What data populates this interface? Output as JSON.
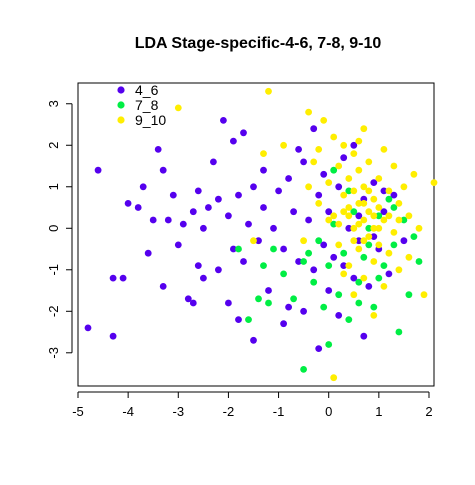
{
  "chart_data": {
    "type": "scatter",
    "title": "LDA Stage-specific-4-6, 7-8, 9-10",
    "xlabel": "",
    "ylabel": "",
    "xlim": [
      -5,
      2.1
    ],
    "ylim": [
      -3.8,
      3.5
    ],
    "x_ticks": [
      -5,
      -4,
      -3,
      -2,
      -1,
      0,
      1,
      2
    ],
    "y_ticks": [
      -3,
      -2,
      -1,
      0,
      1,
      2,
      3
    ],
    "x_tick_labels": [
      "-5",
      "-4",
      "-3",
      "-2",
      "-1",
      "0",
      "1",
      "2"
    ],
    "y_tick_labels": [
      "-3",
      "-2",
      "-1",
      "0",
      "1",
      "2",
      "3"
    ],
    "legend_position": "top-left",
    "series": [
      {
        "name": "4_6",
        "color": "#5500ee",
        "points": [
          [
            -4.8,
            -2.4
          ],
          [
            -4.6,
            1.4
          ],
          [
            -4.3,
            -2.6
          ],
          [
            -4.3,
            -1.2
          ],
          [
            -4.1,
            -1.2
          ],
          [
            -4.0,
            0.6
          ],
          [
            -3.8,
            0.5
          ],
          [
            -3.7,
            1.0
          ],
          [
            -3.6,
            -0.6
          ],
          [
            -3.5,
            0.2
          ],
          [
            -3.4,
            1.9
          ],
          [
            -3.3,
            1.4
          ],
          [
            -3.2,
            0.2
          ],
          [
            -3.1,
            0.8
          ],
          [
            -3.0,
            -0.4
          ],
          [
            -2.9,
            0.1
          ],
          [
            -2.8,
            -1.7
          ],
          [
            -2.7,
            -1.8
          ],
          [
            -2.7,
            0.4
          ],
          [
            -2.6,
            -0.9
          ],
          [
            -2.6,
            0.9
          ],
          [
            -2.5,
            0.0
          ],
          [
            -2.4,
            0.5
          ],
          [
            -2.3,
            1.6
          ],
          [
            -2.2,
            -1.0
          ],
          [
            -2.2,
            0.7
          ],
          [
            -2.1,
            2.6
          ],
          [
            -2.0,
            -1.8
          ],
          [
            -2.0,
            0.3
          ],
          [
            -1.9,
            -0.5
          ],
          [
            -1.9,
            2.1
          ],
          [
            -1.8,
            0.8
          ],
          [
            -1.7,
            -0.8
          ],
          [
            -1.7,
            2.3
          ],
          [
            -1.6,
            0.1
          ],
          [
            -1.5,
            -2.7
          ],
          [
            -1.5,
            1.0
          ],
          [
            -1.4,
            -0.3
          ],
          [
            -1.3,
            0.5
          ],
          [
            -1.3,
            1.4
          ],
          [
            -1.2,
            -1.5
          ],
          [
            -1.1,
            0.0
          ],
          [
            -1.0,
            0.9
          ],
          [
            -0.9,
            -0.5
          ],
          [
            -0.8,
            -1.9
          ],
          [
            -0.8,
            1.2
          ],
          [
            -0.7,
            0.4
          ],
          [
            -0.6,
            -0.8
          ],
          [
            -0.5,
            -2.0
          ],
          [
            -0.5,
            1.6
          ],
          [
            -0.4,
            0.2
          ],
          [
            -0.3,
            -1.0
          ],
          [
            -0.3,
            2.4
          ],
          [
            -0.2,
            -2.9
          ],
          [
            -0.2,
            0.8
          ],
          [
            -0.1,
            -0.4
          ],
          [
            -0.1,
            1.3
          ],
          [
            0.0,
            -1.5
          ],
          [
            0.0,
            0.4
          ],
          [
            0.1,
            -0.7
          ],
          [
            0.2,
            1.0
          ],
          [
            0.2,
            -2.1
          ],
          [
            0.3,
            1.7
          ],
          [
            0.4,
            0.0
          ],
          [
            0.5,
            -1.2
          ],
          [
            0.5,
            2.0
          ],
          [
            0.6,
            -0.3
          ],
          [
            0.7,
            0.7
          ],
          [
            0.8,
            -1.4
          ],
          [
            0.9,
            1.1
          ],
          [
            1.0,
            -0.5
          ],
          [
            1.1,
            0.4
          ],
          [
            1.2,
            -1.1
          ],
          [
            1.3,
            0.8
          ],
          [
            1.5,
            -0.3
          ],
          [
            0.7,
            -2.6
          ],
          [
            -0.9,
            -2.3
          ],
          [
            -1.8,
            -2.2
          ],
          [
            -3.3,
            -1.4
          ],
          [
            -2.5,
            -1.2
          ],
          [
            -0.6,
            1.9
          ],
          [
            0.3,
            -0.9
          ],
          [
            0.6,
            0.3
          ],
          [
            0.9,
            -0.2
          ],
          [
            1.1,
            0.9
          ]
        ]
      },
      {
        "name": "7_8",
        "color": "#00ee44",
        "points": [
          [
            -1.8,
            -0.5
          ],
          [
            -1.6,
            -2.2
          ],
          [
            -1.4,
            -1.7
          ],
          [
            -1.3,
            -0.9
          ],
          [
            -1.2,
            -1.8
          ],
          [
            -1.1,
            -0.5
          ],
          [
            -0.9,
            -1.1
          ],
          [
            -0.7,
            -1.7
          ],
          [
            -0.5,
            -3.4
          ],
          [
            -0.5,
            -0.8
          ],
          [
            -0.3,
            -1.3
          ],
          [
            -0.2,
            -0.3
          ],
          [
            -0.1,
            -1.9
          ],
          [
            0.0,
            -2.8
          ],
          [
            0.0,
            -0.9
          ],
          [
            0.1,
            0.1
          ],
          [
            0.2,
            -1.6
          ],
          [
            0.3,
            -0.6
          ],
          [
            0.4,
            -2.2
          ],
          [
            0.5,
            0.4
          ],
          [
            0.6,
            -1.3
          ],
          [
            0.7,
            -0.7
          ],
          [
            0.8,
            0.0
          ],
          [
            0.9,
            -1.9
          ],
          [
            1.0,
            0.3
          ],
          [
            1.1,
            -0.9
          ],
          [
            1.2,
            0.7
          ],
          [
            1.3,
            -0.4
          ],
          [
            1.4,
            -2.5
          ],
          [
            1.5,
            0.2
          ],
          [
            1.6,
            -1.6
          ],
          [
            1.7,
            -0.2
          ],
          [
            1.8,
            -0.8
          ],
          [
            0.4,
            0.9
          ],
          [
            0.1,
            1.4
          ],
          [
            -0.4,
            -0.6
          ],
          [
            0.6,
            -1.8
          ],
          [
            1.0,
            -1.2
          ],
          [
            1.3,
            0.5
          ],
          [
            0.8,
            -0.4
          ]
        ]
      },
      {
        "name": "9_10",
        "color": "#ffee00",
        "points": [
          [
            -3.0,
            2.9
          ],
          [
            -1.2,
            3.3
          ],
          [
            -1.3,
            1.8
          ],
          [
            -1.5,
            -0.3
          ],
          [
            -0.9,
            2.0
          ],
          [
            -0.5,
            -0.3
          ],
          [
            -0.4,
            2.8
          ],
          [
            -0.3,
            1.6
          ],
          [
            -0.2,
            0.6
          ],
          [
            -0.1,
            2.6
          ],
          [
            0.0,
            1.1
          ],
          [
            0.1,
            0.3
          ],
          [
            0.1,
            2.2
          ],
          [
            0.2,
            -0.4
          ],
          [
            0.2,
            1.5
          ],
          [
            0.3,
            0.8
          ],
          [
            0.3,
            2.0
          ],
          [
            0.4,
            -0.9
          ],
          [
            0.4,
            0.5
          ],
          [
            0.4,
            1.2
          ],
          [
            0.5,
            0.0
          ],
          [
            0.5,
            1.8
          ],
          [
            0.5,
            -1.6
          ],
          [
            0.6,
            0.6
          ],
          [
            0.6,
            1.4
          ],
          [
            0.6,
            -0.5
          ],
          [
            0.7,
            0.2
          ],
          [
            0.7,
            1.0
          ],
          [
            0.7,
            2.4
          ],
          [
            0.7,
            -1.2
          ],
          [
            0.8,
            0.4
          ],
          [
            0.8,
            -0.2
          ],
          [
            0.8,
            1.6
          ],
          [
            0.9,
            0.7
          ],
          [
            0.9,
            -0.8
          ],
          [
            0.9,
            0.0
          ],
          [
            1.0,
            1.2
          ],
          [
            1.0,
            -0.4
          ],
          [
            1.0,
            0.5
          ],
          [
            1.1,
            1.9
          ],
          [
            1.1,
            -1.4
          ],
          [
            1.1,
            0.2
          ],
          [
            1.2,
            0.9
          ],
          [
            1.2,
            -0.6
          ],
          [
            1.3,
            1.5
          ],
          [
            1.3,
            -0.1
          ],
          [
            1.4,
            0.6
          ],
          [
            1.4,
            -1.0
          ],
          [
            1.5,
            1.0
          ],
          [
            1.6,
            0.3
          ],
          [
            1.6,
            -0.7
          ],
          [
            1.7,
            1.3
          ],
          [
            1.8,
            0.0
          ],
          [
            1.9,
            -1.6
          ],
          [
            2.1,
            1.1
          ],
          [
            0.1,
            -3.6
          ],
          [
            0.9,
            -2.1
          ],
          [
            0.3,
            -1.1
          ],
          [
            0.6,
            2.1
          ],
          [
            0.2,
            0.1
          ],
          [
            0.4,
            0.3
          ],
          [
            0.5,
            0.9
          ],
          [
            0.6,
            0.1
          ],
          [
            0.7,
            0.6
          ],
          [
            0.8,
            0.9
          ],
          [
            0.9,
            0.3
          ],
          [
            1.0,
            0.0
          ],
          [
            0.5,
            -0.3
          ],
          [
            0.3,
            0.4
          ],
          [
            0.7,
            -0.3
          ],
          [
            -0.4,
            1.0
          ],
          [
            -0.2,
            1.9
          ],
          [
            0.0,
            0.2
          ],
          [
            1.2,
            0.3
          ],
          [
            1.4,
            0.2
          ]
        ]
      }
    ]
  }
}
